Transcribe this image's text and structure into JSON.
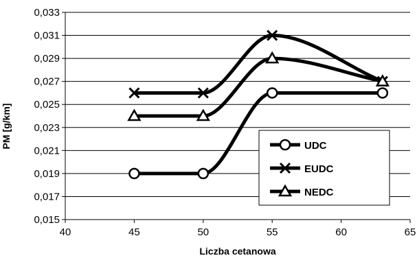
{
  "chart_data": {
    "type": "line",
    "xlabel": "Liczba cetanowa",
    "ylabel": "PM [g/km]",
    "xlim": [
      40,
      65
    ],
    "ylim": [
      0.015,
      0.033
    ],
    "xticks": [
      "40",
      "45",
      "50",
      "55",
      "60",
      "65"
    ],
    "yticks": [
      "0,015",
      "0,017",
      "0,019",
      "0,021",
      "0,023",
      "0,025",
      "0,027",
      "0,029",
      "0,031",
      "0,033"
    ],
    "grid": "horizontal",
    "legend_position": "lower-right",
    "x": [
      45,
      50,
      55,
      63
    ],
    "series": [
      {
        "name": "UDC",
        "marker": "circle",
        "values": [
          0.019,
          0.019,
          0.026,
          0.026
        ]
      },
      {
        "name": "EUDC",
        "marker": "x",
        "values": [
          0.026,
          0.026,
          0.031,
          0.027
        ]
      },
      {
        "name": "NEDC",
        "marker": "triangle",
        "values": [
          0.024,
          0.024,
          0.029,
          0.027
        ]
      }
    ],
    "colors": {
      "line": "#000000",
      "marker_fill": "#ffffff",
      "grid": "#000000",
      "background": "#ffffff"
    }
  }
}
